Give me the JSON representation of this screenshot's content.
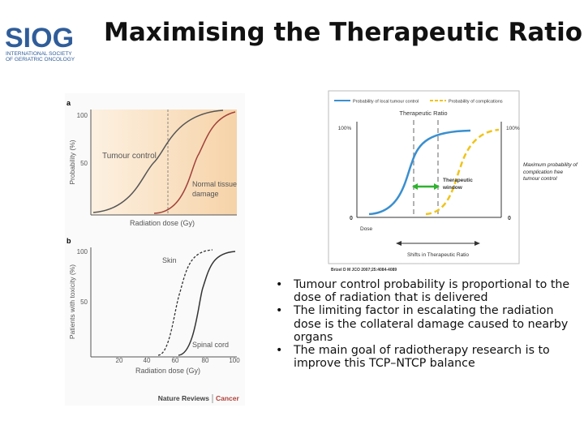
{
  "header": {
    "logo": "SIOG",
    "logo_subtitle": [
      "INTERNATIONAL SOCIETY",
      "OF GERIATRIC ONCOLOGY"
    ],
    "title": "Maximising the Therapeutic Ratio"
  },
  "figure_left": {
    "panel_a": {
      "label": "a",
      "y_axis": "Probability (%)",
      "y_ticks": [
        "100",
        "50"
      ],
      "x_axis": "Radiation dose (Gy)",
      "curve_1": "Tumour control",
      "curve_2": [
        "Normal tissue",
        "damage"
      ]
    },
    "panel_b": {
      "label": "b",
      "y_axis": "Patients with toxicity (%)",
      "y_ticks": [
        "100",
        "50"
      ],
      "x_ticks": [
        "20",
        "40",
        "60",
        "80",
        "100"
      ],
      "x_axis": "Radiation dose (Gy)",
      "curve_1": "Skin",
      "curve_2": "Spinal cord"
    },
    "credit": {
      "journal": "Nature Reviews",
      "section": "Cancer"
    }
  },
  "figure_right": {
    "legend": [
      "Probability of local tumour control",
      "Probability of complications"
    ],
    "title": "Therapeutic Ratio",
    "left_top": "100%",
    "right_top": "100%",
    "left_zero": "0",
    "right_zero": "0",
    "x_axis": "Dose",
    "window": [
      "Therapeutic",
      "window"
    ],
    "shift": "Shifts in Therapeutic Ratio",
    "citation": "Brizel D M JCO 2007;25:4084-4089"
  },
  "note": "Maximum probability of complication free tumour control",
  "bullets": [
    "Tumour control probability is proportional to the dose of radiation that is delivered",
    "The limiting factor in escalating the radiation dose is the collateral damage caused to nearby organs",
    "The main goal of radiotherapy research is to improve this TCP–NTCP balance"
  ]
}
